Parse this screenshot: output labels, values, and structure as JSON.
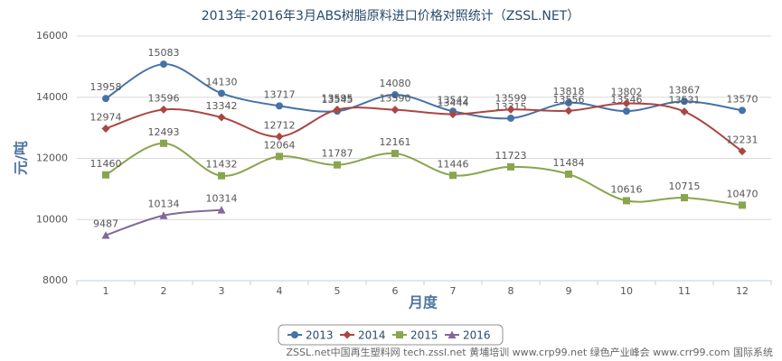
{
  "chart_data": {
    "type": "line",
    "title": "2013年-2016年3月ABS树脂原料进口价格对照统计（ZSSL.NET）",
    "x_label": "月度",
    "y_label": "元/吨",
    "categories": [
      "1",
      "2",
      "3",
      "4",
      "5",
      "6",
      "7",
      "8",
      "9",
      "10",
      "11",
      "12"
    ],
    "series": [
      {
        "name": "2013",
        "color": "#4572A7",
        "marker": "circle",
        "values": [
          13958,
          15083,
          14130,
          13717,
          13545,
          14080,
          13542,
          13315,
          13818,
          13546,
          13867,
          13570
        ]
      },
      {
        "name": "2014",
        "color": "#AA4643",
        "marker": "diamond",
        "values": [
          12974,
          13596,
          13342,
          12712,
          13595,
          13590,
          13444,
          13599,
          13556,
          13802,
          13531,
          12231
        ]
      },
      {
        "name": "2015",
        "color": "#89A54E",
        "marker": "square",
        "values": [
          11460,
          12493,
          11432,
          12064,
          11787,
          12161,
          11446,
          11723,
          11484,
          10616,
          10715,
          10470
        ]
      },
      {
        "name": "2016",
        "color": "#80699B",
        "marker": "triangle",
        "values": [
          9487,
          10134,
          10314,
          null,
          null,
          null,
          null,
          null,
          null,
          null,
          null,
          null
        ]
      }
    ],
    "ylim": [
      8000,
      16000
    ],
    "yticks": [
      8000,
      10000,
      12000,
      14000,
      16000
    ],
    "grid": true,
    "smooth": true,
    "legend": "bottom",
    "credits": "ZSSL.net中国再生塑料网 tech.zssl.net 黄埔培训 www.crp99.net 绿色产业峰会 www.crr99.com 国际系统"
  }
}
